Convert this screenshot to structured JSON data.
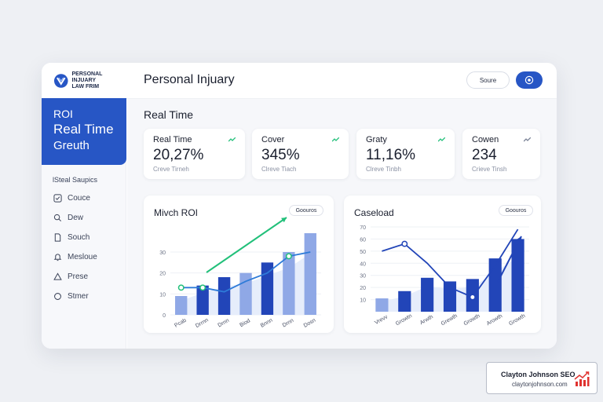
{
  "brand": {
    "line1": "PERSONAL INJUARY",
    "line2": "LAW FRIM"
  },
  "hero": {
    "line1": "ROI",
    "line2": "Real Time",
    "line3": "Greuth"
  },
  "sidebar": {
    "heading": "lSteal Saupics",
    "items": [
      {
        "label": "Couce",
        "icon": "checkbox-icon"
      },
      {
        "label": "Dew",
        "icon": "search-icon"
      },
      {
        "label": "Souch",
        "icon": "document-icon"
      },
      {
        "label": "Mesloue",
        "icon": "bell-icon"
      },
      {
        "label": "Prese",
        "icon": "alert-icon"
      },
      {
        "label": "Stmer",
        "icon": "circle-icon"
      }
    ]
  },
  "header": {
    "title": "Personal Injuary",
    "source_label": "Soure"
  },
  "section_title": "Real Time",
  "stats": [
    {
      "label": "Real Time",
      "value": "20,27%",
      "sub": "Creve Tirneh"
    },
    {
      "label": "Cover",
      "value": "345%",
      "sub": "Clreve Tiach"
    },
    {
      "label": "Graty",
      "value": "11,16%",
      "sub": "Clreve Tinbh"
    },
    {
      "label": "Cowen",
      "value": "234",
      "sub": "Crieve Tinsh"
    }
  ],
  "colors": {
    "accent": "#2756c5",
    "bar_light": "#8fa8e6",
    "bar_dark": "#2245b8",
    "green": "#22c07a"
  },
  "chart_data": [
    {
      "type": "bar",
      "title": "Mivch ROI",
      "button_label": "Goouros",
      "categories": [
        "Pcab",
        "Drrnn",
        "Drnn",
        "Biod",
        "Bnnn",
        "Drnn",
        "Dosn"
      ],
      "yticks": [
        0,
        10,
        20,
        30
      ],
      "ylim": [
        0,
        42
      ],
      "series": [
        {
          "values": [
            9,
            14,
            18,
            20,
            25,
            30,
            39
          ]
        }
      ],
      "line_values": [
        13,
        13,
        11,
        16,
        20,
        28,
        30
      ]
    },
    {
      "type": "bar",
      "title": "Caseload",
      "button_label": "Goouros",
      "categories": [
        "Vrevv",
        "Growtn",
        "Arwth",
        "Grewth",
        "Growth",
        "Arowth",
        "Growth"
      ],
      "yticks": [
        10,
        20,
        30,
        40,
        50,
        60,
        70
      ],
      "ylim": [
        0,
        70
      ],
      "series": [
        {
          "values": [
            11,
            17,
            28,
            25,
            27,
            44,
            60
          ]
        }
      ],
      "line_values": [
        50,
        56,
        40,
        20,
        12,
        38,
        68
      ]
    }
  ],
  "badge": {
    "name": "Clayton Johnson SEO",
    "url": "claytonjohnson.com"
  }
}
